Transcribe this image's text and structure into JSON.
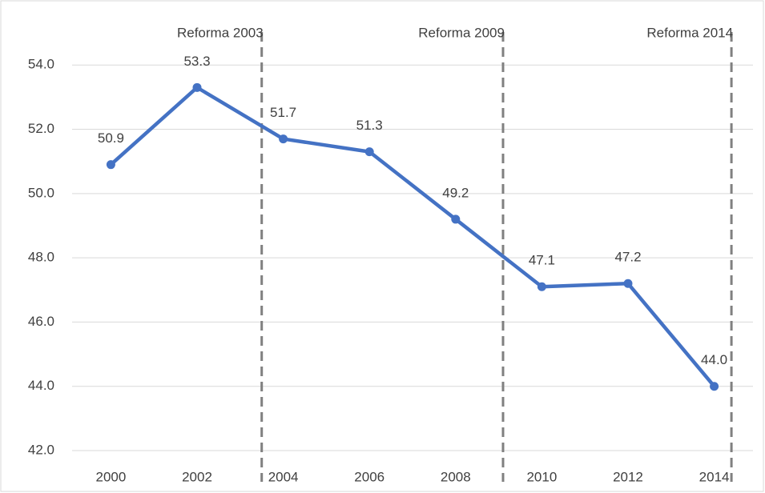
{
  "chart_data": {
    "type": "line",
    "x": [
      2000,
      2002,
      2004,
      2006,
      2008,
      2010,
      2012,
      2014
    ],
    "series": [
      {
        "color": "#4472c4",
        "values": [
          50.9,
          53.3,
          51.7,
          51.3,
          49.2,
          47.1,
          47.2,
          44.0
        ],
        "value_labels": [
          "50.9",
          "53.3",
          "51.7",
          "51.3",
          "49.2",
          "47.1",
          "47.2",
          "44.0"
        ]
      }
    ],
    "xlim": [
      1999.1,
      2014.9
    ],
    "ylim": [
      42,
      55.5
    ],
    "yticks": [
      {
        "value": 42,
        "label": "42.0"
      },
      {
        "value": 44,
        "label": "44.0"
      },
      {
        "value": 46,
        "label": "46.0"
      },
      {
        "value": 48,
        "label": "48.0"
      },
      {
        "value": 50,
        "label": "50.0"
      },
      {
        "value": 52,
        "label": "52.0"
      },
      {
        "value": 54,
        "label": "54.0"
      }
    ],
    "grid": true,
    "annotations": [
      {
        "text": "Reforma 2003",
        "x": 2003.5
      },
      {
        "text": "Reforma 2009",
        "x": 2009.1
      },
      {
        "text": "Reforma 2014",
        "x": 2014.4
      }
    ]
  }
}
